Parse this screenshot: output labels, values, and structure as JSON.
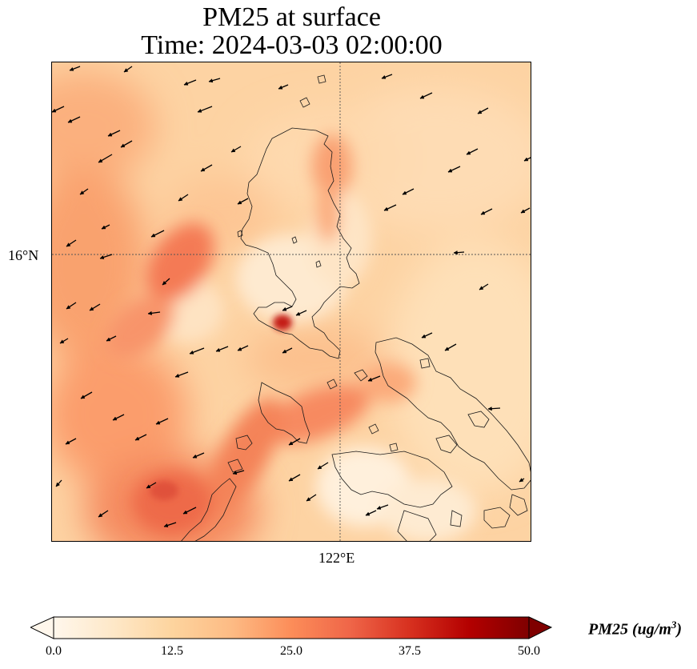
{
  "title": {
    "line1": "PM25 at surface",
    "line2": "Time: 2024-03-03 02:00:00"
  },
  "map": {
    "latitude_gridline_label": "16°N",
    "longitude_gridline_label": "122°E",
    "colormap": "OrRd",
    "wind_vectors": "black arrows, predominantly from the northeast",
    "hotspot_color": "#b30000"
  },
  "colorbar": {
    "label": "PM25 (ug/m",
    "label_superscript": "3",
    "label_close": ")",
    "ticks": [
      "0.0",
      "12.5",
      "25.0",
      "37.5",
      "50.0"
    ],
    "range": [
      0.0,
      50.0
    ],
    "extend": "both",
    "colors": [
      "#fff7ec",
      "#fee8c8",
      "#fdd49e",
      "#fdbb84",
      "#fc8d59",
      "#ef6548",
      "#d7301f",
      "#b30000",
      "#7f0000"
    ]
  }
}
